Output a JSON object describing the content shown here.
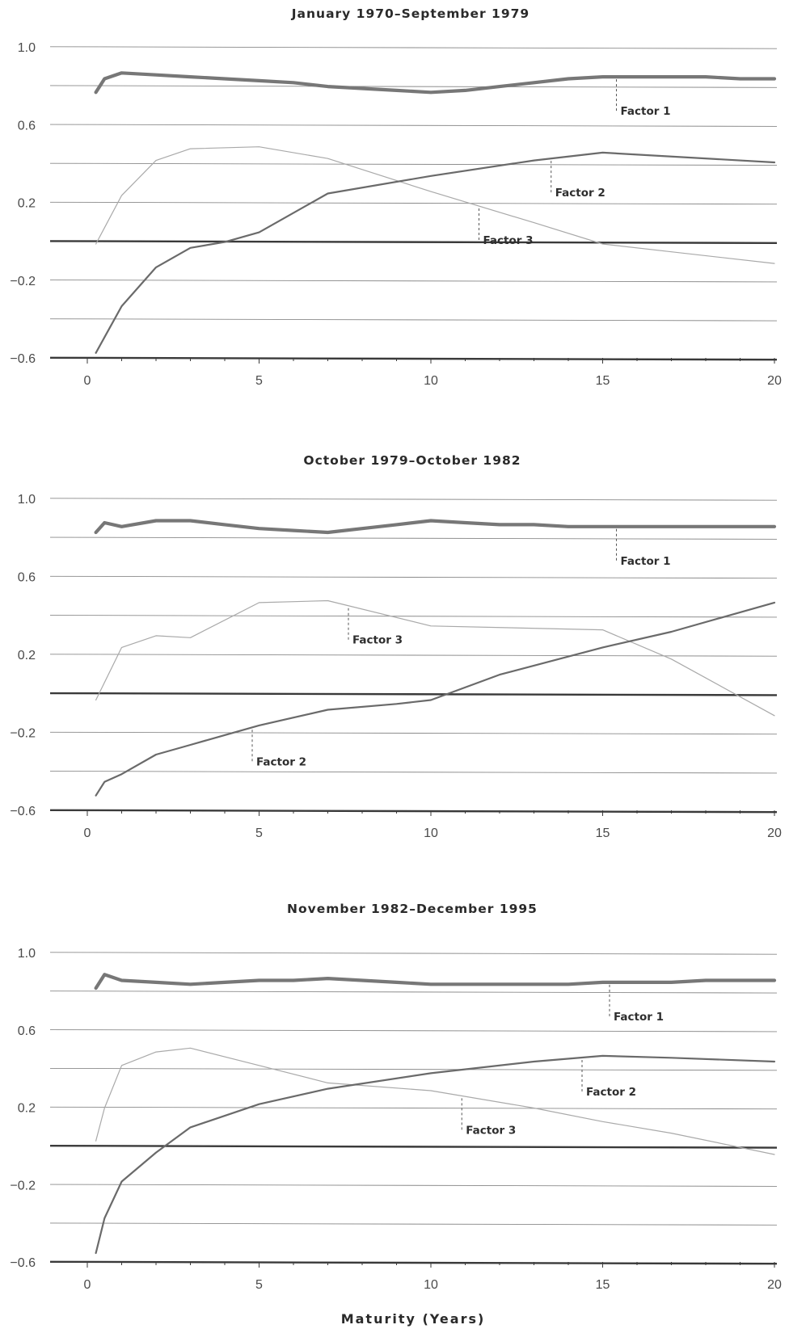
{
  "colors": {
    "factor_1": "#777777",
    "factor_2": "#6a6a6a",
    "factor_3": "#a9a9a9",
    "gridline": "#8a8a8a",
    "baseline": "#3a3a3a",
    "text": "#2a2a2a"
  },
  "chart_data": [
    {
      "type": "line",
      "title": "January 1970–September 1979",
      "xlabel": "",
      "ylabel": "",
      "xlim": [
        -1,
        20
      ],
      "ylim": [
        -0.6,
        1.0
      ],
      "yticks": [
        1.0,
        0.6,
        0.2,
        -0.2,
        -0.6
      ],
      "ytick_labels": [
        "1.0",
        "0.6",
        "0.2",
        "−0.2",
        "−0.6"
      ],
      "xticks": [
        0,
        5,
        10,
        15,
        20
      ],
      "xtick_labels": [
        "0",
        "5",
        "10",
        "15",
        "20"
      ],
      "grid": true,
      "series": [
        {
          "name": "Factor 1",
          "x": [
            0.25,
            0.5,
            1,
            2,
            3,
            4,
            5,
            6,
            7,
            8,
            9,
            10,
            11,
            12,
            13,
            14,
            15,
            16,
            17,
            18,
            19,
            20
          ],
          "y": [
            0.77,
            0.84,
            0.87,
            0.86,
            0.85,
            0.84,
            0.83,
            0.82,
            0.8,
            0.79,
            0.78,
            0.77,
            0.78,
            0.8,
            0.82,
            0.84,
            0.85,
            0.85,
            0.85,
            0.85,
            0.84,
            0.84
          ],
          "label_at": 15.4
        },
        {
          "name": "Factor 2",
          "x": [
            0.25,
            1,
            2,
            3,
            4,
            5,
            7,
            10,
            13,
            15,
            20
          ],
          "y": [
            -0.57,
            -0.33,
            -0.13,
            -0.03,
            0.0,
            0.05,
            0.25,
            0.34,
            0.42,
            0.46,
            0.41
          ],
          "label_at": 13.5
        },
        {
          "name": "Factor 3",
          "x": [
            0.25,
            1,
            2,
            3,
            5,
            7,
            10,
            13,
            15,
            17,
            20
          ],
          "y": [
            -0.01,
            0.24,
            0.42,
            0.48,
            0.49,
            0.43,
            0.26,
            0.1,
            -0.01,
            -0.05,
            -0.11
          ],
          "label_at": 11.4
        }
      ]
    },
    {
      "type": "line",
      "title": "October 1979–October 1982",
      "xlabel": "",
      "ylabel": "",
      "xlim": [
        -1,
        20
      ],
      "ylim": [
        -0.6,
        1.0
      ],
      "yticks": [
        1.0,
        0.6,
        0.2,
        -0.2,
        -0.6
      ],
      "ytick_labels": [
        "1.0",
        "0.6",
        "0.2",
        "−0.2",
        "−0.6"
      ],
      "xticks": [
        0,
        5,
        10,
        15,
        20
      ],
      "xtick_labels": [
        "0",
        "5",
        "10",
        "15",
        "20"
      ],
      "grid": true,
      "series": [
        {
          "name": "Factor 1",
          "x": [
            0.25,
            0.5,
            1,
            2,
            3,
            4,
            5,
            6,
            7,
            8,
            9,
            10,
            11,
            12,
            13,
            14,
            15,
            16,
            17,
            18,
            19,
            20
          ],
          "y": [
            0.83,
            0.88,
            0.86,
            0.89,
            0.89,
            0.87,
            0.85,
            0.84,
            0.83,
            0.85,
            0.87,
            0.89,
            0.88,
            0.87,
            0.87,
            0.86,
            0.86,
            0.86,
            0.86,
            0.86,
            0.86,
            0.86
          ],
          "label_at": 15.4
        },
        {
          "name": "Factor 2",
          "x": [
            0.25,
            0.5,
            1,
            2,
            3,
            4,
            5,
            7,
            9,
            10,
            12,
            15,
            17,
            20
          ],
          "y": [
            -0.52,
            -0.45,
            -0.41,
            -0.31,
            -0.26,
            -0.21,
            -0.16,
            -0.08,
            -0.05,
            -0.03,
            0.1,
            0.24,
            0.32,
            0.47
          ],
          "label_at": 4.8
        },
        {
          "name": "Factor 3",
          "x": [
            0.25,
            1,
            2,
            3,
            5,
            7,
            10,
            15,
            17,
            20
          ],
          "y": [
            -0.03,
            0.24,
            0.3,
            0.29,
            0.47,
            0.48,
            0.35,
            0.33,
            0.18,
            -0.11
          ],
          "label_at": 7.6
        }
      ]
    },
    {
      "type": "line",
      "title": "November 1982–December 1995",
      "xlabel": "Maturity (Years)",
      "ylabel": "",
      "xlim": [
        -1,
        20
      ],
      "ylim": [
        -0.6,
        1.0
      ],
      "yticks": [
        1.0,
        0.6,
        0.2,
        -0.2,
        -0.6
      ],
      "ytick_labels": [
        "1.0",
        "0.6",
        "0.2",
        "−0.2",
        "−0.6"
      ],
      "xticks": [
        0,
        5,
        10,
        15,
        20
      ],
      "xtick_labels": [
        "0",
        "5",
        "10",
        "15",
        "20"
      ],
      "grid": true,
      "series": [
        {
          "name": "Factor 1",
          "x": [
            0.25,
            0.5,
            1,
            2,
            3,
            4,
            5,
            6,
            7,
            8,
            9,
            10,
            11,
            12,
            13,
            14,
            15,
            16,
            17,
            18,
            19,
            20
          ],
          "y": [
            0.82,
            0.89,
            0.86,
            0.85,
            0.84,
            0.85,
            0.86,
            0.86,
            0.87,
            0.86,
            0.85,
            0.84,
            0.84,
            0.84,
            0.84,
            0.84,
            0.85,
            0.85,
            0.85,
            0.86,
            0.86,
            0.86
          ],
          "label_at": 15.2
        },
        {
          "name": "Factor 2",
          "x": [
            0.25,
            0.5,
            1,
            2,
            3,
            5,
            7,
            10,
            13,
            15,
            17,
            20
          ],
          "y": [
            -0.55,
            -0.37,
            -0.18,
            -0.03,
            0.1,
            0.22,
            0.3,
            0.38,
            0.44,
            0.47,
            0.46,
            0.44
          ],
          "label_at": 14.4
        },
        {
          "name": "Factor 3",
          "x": [
            0.25,
            0.5,
            1,
            2,
            3,
            5,
            7,
            10,
            13,
            15,
            17,
            20
          ],
          "y": [
            0.03,
            0.2,
            0.42,
            0.49,
            0.51,
            0.42,
            0.33,
            0.29,
            0.2,
            0.13,
            0.07,
            -0.04
          ],
          "label_at": 10.9
        }
      ]
    }
  ]
}
